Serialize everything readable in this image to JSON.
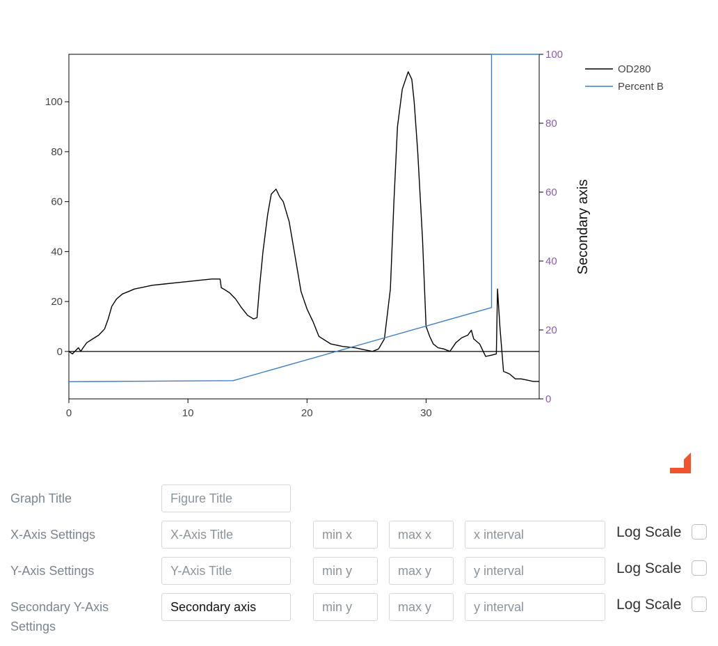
{
  "chart_data": {
    "type": "line",
    "title": "",
    "xlabel": "",
    "ylabel": "",
    "y2label": "Secondary axis",
    "xlim": [
      0,
      39.5
    ],
    "ylim": [
      -19,
      119
    ],
    "y2lim": [
      0,
      100
    ],
    "x_ticks": [
      0,
      10,
      20,
      30
    ],
    "y_ticks": [
      0,
      20,
      40,
      60,
      80,
      100
    ],
    "y2_ticks": [
      0,
      20,
      40,
      60,
      80,
      100
    ],
    "grid": false,
    "legend_position": "top-right",
    "colors": {
      "od280": "#000000",
      "percent_b": "#3f7fc1",
      "secondary_ticks": "#8a5bb5"
    },
    "series": [
      {
        "name": "OD280",
        "axis": "y",
        "x": [
          0,
          0.3,
          0.5,
          0.8,
          1.0,
          1.2,
          1.5,
          2.0,
          2.5,
          3.0,
          3.3,
          3.6,
          4.0,
          4.5,
          5.0,
          5.5,
          6.0,
          7.0,
          8.0,
          9.0,
          10.0,
          11.0,
          12.0,
          12.7,
          12.8,
          13.0,
          13.5,
          14.0,
          14.5,
          15.0,
          15.5,
          15.8,
          16.0,
          16.3,
          16.7,
          17.0,
          17.4,
          17.7,
          18.0,
          18.5,
          19.0,
          19.5,
          20.0,
          20.5,
          21.0,
          22.0,
          23.0,
          24.0,
          24.5,
          25.0,
          25.5,
          26.0,
          26.5,
          27.0,
          27.3,
          27.6,
          28.0,
          28.5,
          28.8,
          29.0,
          29.3,
          29.7,
          30.0,
          30.3,
          30.6,
          31.0,
          31.5,
          32.0,
          32.5,
          33.0,
          33.5,
          33.8,
          34.0,
          34.5,
          35.0,
          35.5,
          35.9,
          36.0,
          36.2,
          36.5,
          37.0,
          37.5,
          38.0,
          38.5,
          39.0,
          39.5
        ],
        "y": [
          0,
          -1,
          0,
          1.5,
          0,
          1.5,
          3.5,
          5,
          6.5,
          9,
          13,
          18,
          21,
          23,
          24,
          25,
          25.5,
          26.5,
          27,
          27.5,
          28,
          28.5,
          29,
          29,
          25.5,
          25,
          23.5,
          21,
          17.5,
          14.5,
          13,
          13.5,
          25,
          40,
          55,
          63,
          65,
          62,
          60,
          52,
          38,
          24,
          17,
          12,
          6,
          3,
          2,
          1.5,
          1,
          0.5,
          0,
          1,
          5,
          25,
          60,
          90,
          105,
          112,
          109,
          100,
          80,
          45,
          10,
          6,
          3,
          1.5,
          1,
          0,
          3.5,
          5.5,
          6.5,
          8.5,
          5,
          3,
          -2,
          -1.5,
          -1,
          25,
          10,
          -8,
          -9,
          -11,
          -11,
          -11.5,
          -12,
          -12
        ]
      },
      {
        "name": "Percent B",
        "axis": "y2",
        "x": [
          0,
          13.8,
          35.5,
          35.5,
          39.5
        ],
        "y": [
          5,
          5.3,
          26.5,
          100,
          100
        ]
      }
    ]
  },
  "settings": {
    "rows": [
      {
        "label": "Graph Title",
        "title_placeholder": "Figure Title",
        "title_value": ""
      },
      {
        "label": "X-Axis Settings",
        "title_placeholder": "X-Axis Title",
        "title_value": "",
        "min_placeholder": "min x",
        "max_placeholder": "max x",
        "interval_placeholder": "x interval",
        "log_label": "Log Scale"
      },
      {
        "label": "Y-Axis Settings",
        "title_placeholder": "Y-Axis Title",
        "title_value": "",
        "min_placeholder": "min y",
        "max_placeholder": "max y",
        "interval_placeholder": "y interval",
        "log_label": "Log Scale"
      },
      {
        "label": "Secondary Y-Axis Settings",
        "title_placeholder": "",
        "title_value": "Secondary axis",
        "min_placeholder": "min y",
        "max_placeholder": "max y",
        "interval_placeholder": "y interval",
        "log_label": "Log Scale"
      }
    ]
  }
}
